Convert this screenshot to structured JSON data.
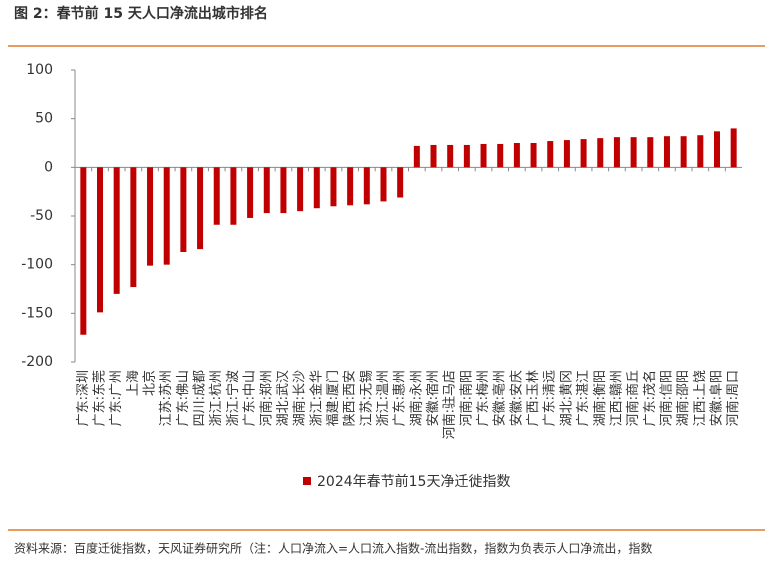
{
  "chart_data": {
    "type": "bar",
    "title": "图 2：春节前 15 天人口净流出城市排名",
    "source": "资料来源：百度迁徙指数，天风证券研究所（注：人口净流入=人口流入指数-流出指数，指数为负表示人口净流出，指数",
    "categories": [
      "广东:深圳",
      "广东:东莞",
      "广东:广州",
      "上海",
      "北京",
      "江苏:苏州",
      "广东:佛山",
      "四川:成都",
      "浙江:杭州",
      "浙江:宁波",
      "广东:中山",
      "河南:郑州",
      "湖北:武汉",
      "湖南:长沙",
      "浙江:金华",
      "福建:厦门",
      "陕西:西安",
      "江苏:无锡",
      "浙江:温州",
      "广东:惠州",
      "湖南:永州",
      "安徽:宿州",
      "河南:驻马店",
      "河南:南阳",
      "广东:梅州",
      "安徽:亳州",
      "安徽:安庆",
      "广西:玉林",
      "广东:清远",
      "湖北:黄冈",
      "广东:湛江",
      "湖南:衡阳",
      "江西:赣州",
      "河南:商丘",
      "广东:茂名",
      "河南:信阳",
      "湖南:邵阳",
      "江西:上饶",
      "安徽:阜阳",
      "河南:周口"
    ],
    "series": [
      {
        "name": "2024年春节前15天净迁徙指数",
        "color": "#c00000",
        "values": [
          -172,
          -149,
          -130,
          -123,
          -101,
          -100,
          -87,
          -84,
          -59,
          -59,
          -52,
          -47,
          -47,
          -45,
          -42,
          -40,
          -39,
          -38,
          -35,
          -31,
          22,
          23,
          23,
          23,
          24,
          24,
          25,
          25,
          27,
          28,
          29,
          30,
          31,
          31,
          31,
          32,
          32,
          33,
          37,
          40
        ]
      }
    ],
    "ylim": [
      -200,
      100
    ],
    "yticks": [
      -200,
      -150,
      -100,
      -50,
      0,
      50,
      100
    ],
    "legend": "bottom"
  }
}
